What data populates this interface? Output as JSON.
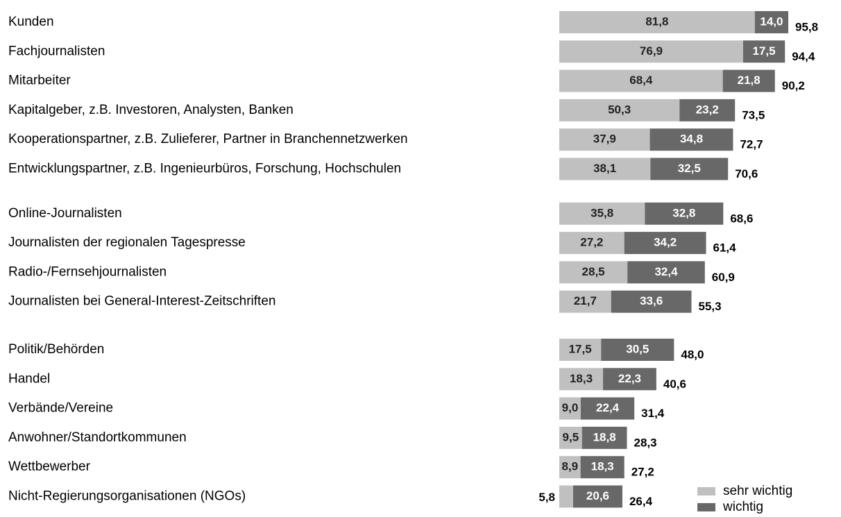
{
  "chart_data": {
    "type": "stacked-barh",
    "categories": [
      "Kunden",
      "Fachjournalisten",
      "Mitarbeiter",
      "Kapitalgeber, z.B. Investoren, Analysten, Banken",
      "Kooperationspartner, z.B. Zulieferer, Partner in Branchennetzwerken",
      "Entwicklungspartner, z.B. Ingenieurbüros, Forschung, Hochschulen",
      "Online-Journalisten",
      "Journalisten der regionalen Tagespresse",
      "Radio-/Fernsehjournalisten",
      "Journalisten bei General-Interest-Zeitschriften",
      "Politik/Behörden",
      "Handel",
      "Verbände/Vereine",
      "Anwohner/Standortkommunen",
      "Wettbewerber",
      "Nicht-Regierungsorganisationen (NGOs)"
    ],
    "series": [
      {
        "name": "sehr wichtig",
        "color": "#c0c0c0",
        "values": [
          81.8,
          76.9,
          68.4,
          50.3,
          37.9,
          38.1,
          35.8,
          27.2,
          28.5,
          21.7,
          17.5,
          18.3,
          9.0,
          9.5,
          8.9,
          5.8
        ],
        "value_labels": [
          "81,8",
          "76,9",
          "68,4",
          "50,3",
          "37,9",
          "38,1",
          "35,8",
          "27,2",
          "28,5",
          "21,7",
          "17,5",
          "18,3",
          "9,0",
          "9,5",
          "8,9",
          "5,8"
        ]
      },
      {
        "name": "wichtig",
        "color": "#686868",
        "values": [
          14.0,
          17.5,
          21.8,
          23.2,
          34.8,
          32.5,
          32.8,
          34.2,
          32.4,
          33.6,
          30.5,
          22.3,
          22.4,
          18.8,
          18.3,
          20.6
        ],
        "value_labels": [
          "14,0",
          "17,5",
          "21,8",
          "23,2",
          "34,8",
          "32,5",
          "32,8",
          "34,2",
          "32,4",
          "33,6",
          "30,5",
          "22,3",
          "22,4",
          "18,8",
          "18,3",
          "20,6"
        ]
      }
    ],
    "totals": {
      "values": [
        95.8,
        94.4,
        90.2,
        73.5,
        72.7,
        70.6,
        68.6,
        61.4,
        60.9,
        55.3,
        48.0,
        40.6,
        31.4,
        28.3,
        27.2,
        26.4
      ],
      "value_labels": [
        "95,8",
        "94,4",
        "90,2",
        "73,5",
        "72,7",
        "70,6",
        "68,6",
        "61,4",
        "60,9",
        "55,3",
        "48,0",
        "40,6",
        "31,4",
        "28,3",
        "27,2",
        "26,4"
      ]
    }
  }
}
